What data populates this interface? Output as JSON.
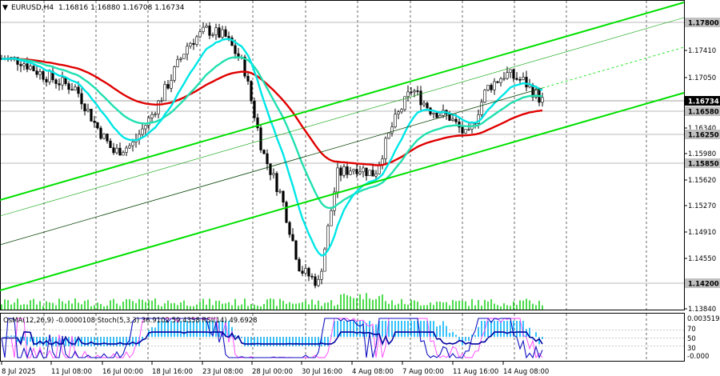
{
  "header": {
    "symbol": "EURUSD,H4",
    "ohlc": "1.16816 1.16880 1.16708 1.16734"
  },
  "indicator_header": "OsMA(12,26,9) -0.0000108  Stoch(5,3,3) 36.9102 59.4358  RSI(14) 49.6928",
  "price_axis_labels": [
    "1.17800",
    "1.17410",
    "1.17050",
    "1.16734",
    "1.16580",
    "1.16340",
    "1.16250",
    "1.15980",
    "1.15850",
    "1.15620",
    "1.15270",
    "1.14910",
    "1.14550",
    "1.14200",
    "1.13840"
  ],
  "highlighted_levels": [
    {
      "label": "1.17800",
      "color": "#c0c0c0"
    },
    {
      "label": "1.16734",
      "color": "#000000"
    },
    {
      "label": "1.16580",
      "color": "#c0c0c0"
    },
    {
      "label": "1.16250",
      "color": "#c0c0c0"
    },
    {
      "label": "1.15850",
      "color": "#c0c0c0"
    },
    {
      "label": "1.14200",
      "color": "#c0c0c0"
    }
  ],
  "indicator_axis_labels": [
    "0.0035199",
    "70",
    "50",
    "30",
    "-0.000"
  ],
  "time_axis_labels": [
    "8 Jul 2025",
    "11 Jul 08:00",
    "16 Jul 00:00",
    "18 Jul 16:00",
    "23 Jul 08:00",
    "28 Jul 00:00",
    "30 Jul 16:00",
    "4 Aug 08:00",
    "7 Aug 00:00",
    "11 Aug 16:00",
    "14 Aug 08:00"
  ],
  "colors": {
    "channel": "#00e000",
    "ema_red": "#e00000",
    "ema_cyan": "#00e6e6",
    "ema_aqua": "#20e0b0",
    "candle": "#000000",
    "volume": "#00cc00",
    "osma": "#00b4ff",
    "stoch_main": "#1010c0",
    "stoch_signal": "#ff40ff",
    "rsi": "#0000a0"
  },
  "chart_data": {
    "type": "candlestick",
    "symbol": "EURUSD",
    "timeframe": "H4",
    "ylim": [
      1.1384,
      1.18
    ],
    "x": [
      "8 Jul 2025",
      "11 Jul 08:00",
      "16 Jul 00:00",
      "18 Jul 16:00",
      "23 Jul 08:00",
      "28 Jul 00:00",
      "30 Jul 16:00",
      "4 Aug 08:00",
      "7 Aug 00:00",
      "11 Aug 16:00",
      "14 Aug 08:00"
    ],
    "close_path": [
      1.173,
      1.1728,
      1.1712,
      1.17,
      1.169,
      1.164,
      1.16,
      1.161,
      1.165,
      1.17,
      1.175,
      1.177,
      1.176,
      1.172,
      1.16,
      1.154,
      1.144,
      1.142,
      1.157,
      1.158,
      1.157,
      1.164,
      1.169,
      1.166,
      1.165,
      1.162,
      1.169,
      1.171,
      1.17,
      1.1673
    ],
    "last_close": 1.16734,
    "levels": [
      1.178,
      1.1658,
      1.1625,
      1.1585,
      1.142
    ],
    "indicators": {
      "osma": {
        "params": "12,26,9",
        "value": -1.08e-05
      },
      "stoch": {
        "params": "5,3,3",
        "main": 36.9102,
        "signal": 59.4358
      },
      "rsi": {
        "params": "14",
        "value": 49.6928
      }
    }
  }
}
